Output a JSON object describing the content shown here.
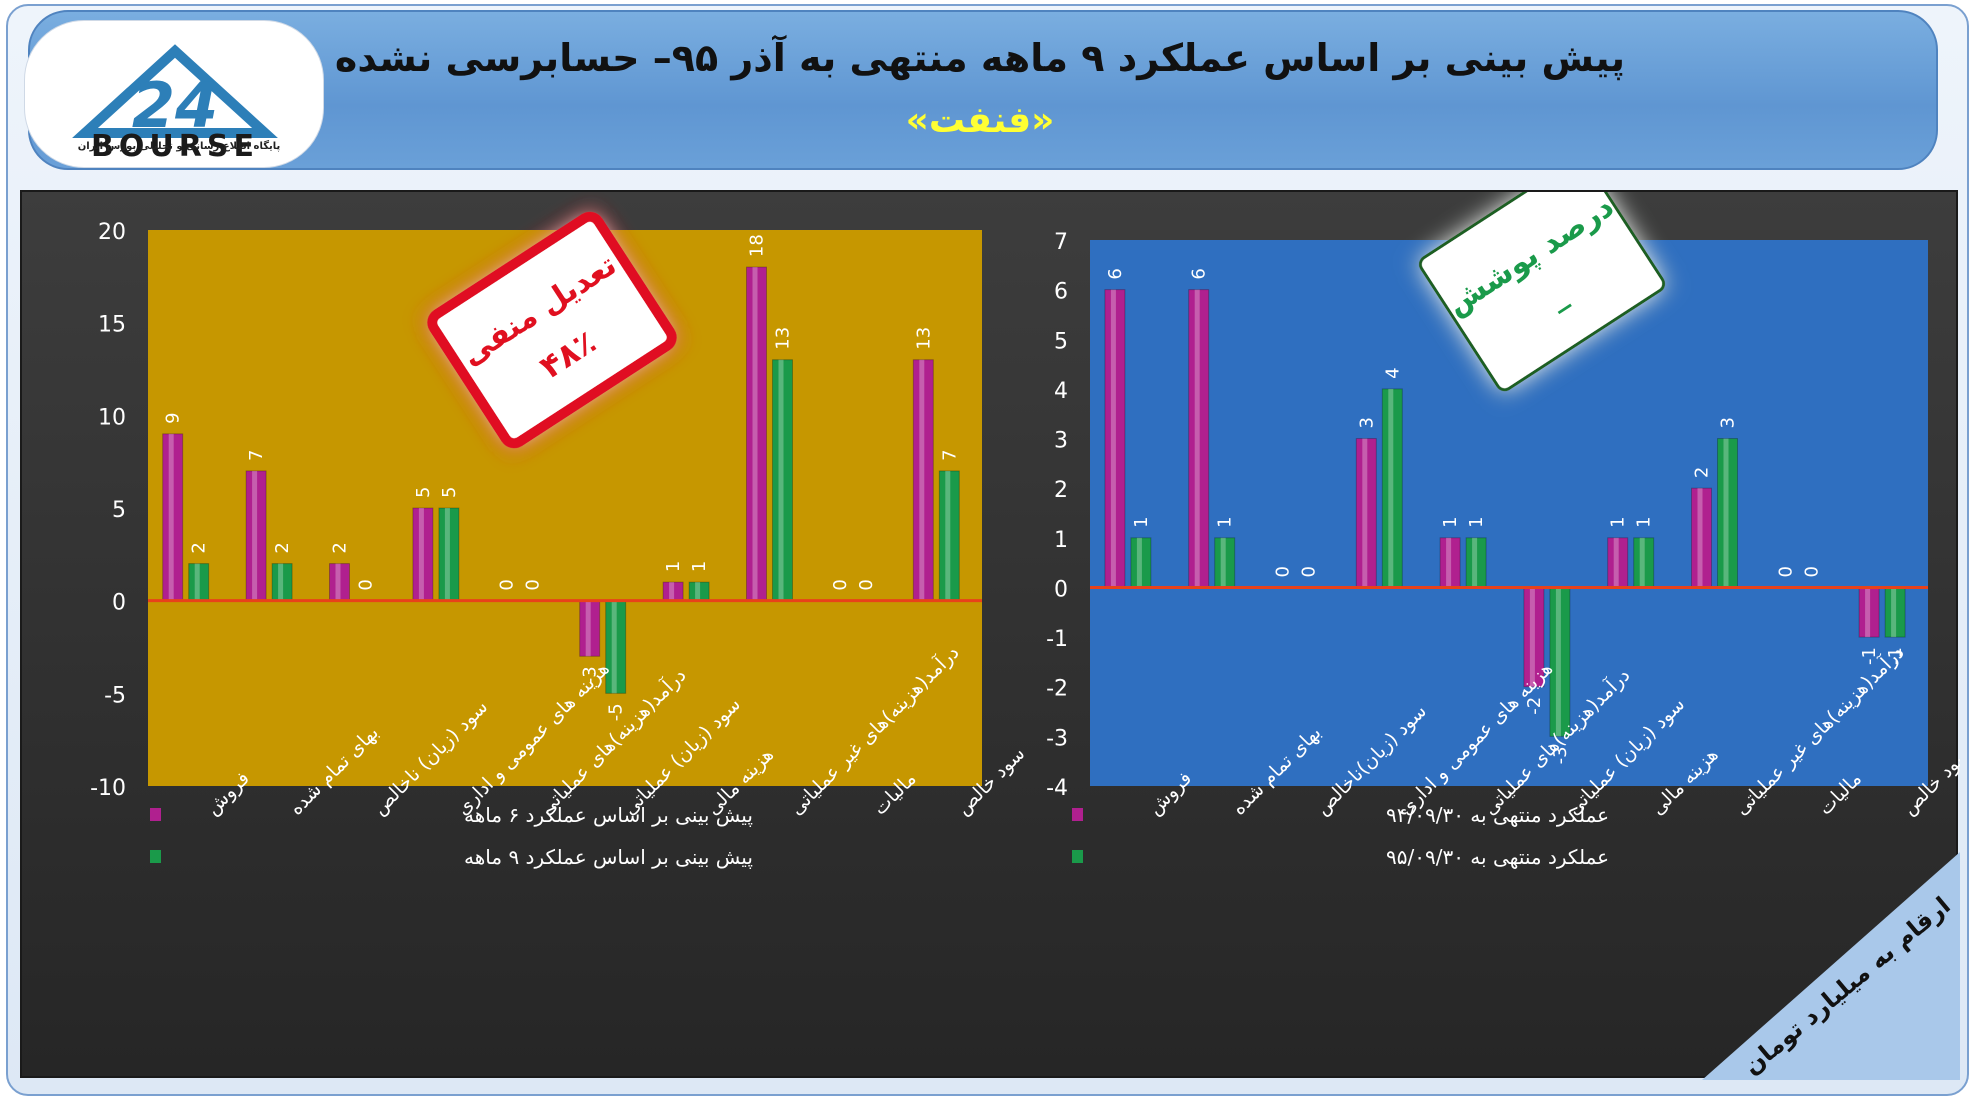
{
  "header": {
    "title": "پیش بینی بر اساس عملکرد ۹ ماهه منتهی به آذر ۹۵– حسابرسی نشده",
    "subtitle": "«فنفت»"
  },
  "logo": {
    "digits": "24",
    "brand": "BOURSE",
    "caption": "پایگاه اطلاع رسانی و تحلیلی بورس ایران"
  },
  "badges": {
    "left": {
      "line1": "تعدیل منفی",
      "line2": "۴۸٪"
    },
    "right": {
      "line1": "درصد پوشش",
      "line2": "_"
    }
  },
  "units_ribbon": "ارقام به میلیارد تومان",
  "colors": {
    "series_a": "#b0208f",
    "series_b": "#1a9a4a",
    "left_plot_bg": "#c69700",
    "right_plot_bg": "#2f6fc0",
    "zero_line": "#e8421a",
    "left_badge": "#e01020",
    "right_badge": "#1a9a4a"
  },
  "chart_data": [
    {
      "type": "bar",
      "categories": [
        "فروش",
        "بهای تمام شده",
        "سود (زیان) ناخالص",
        "هزینه های عمومی و اداری",
        "درآمد(هزینه)های عملیاتی",
        "سود (زیان) عملیاتی",
        "هزینه مالی",
        "درآمد(هزینه)های غیر عملیاتی",
        "مالیات",
        "سود خالص"
      ],
      "series": [
        {
          "name": "پیش بینی بر اساس عملکرد ۶ ماهه",
          "values": [
            9,
            7,
            2,
            5,
            0,
            -3,
            1,
            18,
            0,
            13
          ]
        },
        {
          "name": "پیش بینی بر اساس عملکرد ۹ ماهه",
          "values": [
            2,
            2,
            0,
            5,
            0,
            -5,
            1,
            13,
            0,
            7
          ]
        }
      ],
      "ylim": [
        -10,
        20
      ],
      "yticks": [
        20,
        15,
        10,
        5,
        0,
        -5,
        -10
      ],
      "legend": "bottom-left"
    },
    {
      "type": "bar",
      "categories": [
        "فروش",
        "بهای تمام شده",
        "سود (زیان)ناخالص",
        "هزینه های عمومی و اداری",
        "درآمد(هزینه)های عملیاتی",
        "سود (زیان) عملیاتی",
        "هزینه مالی",
        "درآمد(هزینه)های غیر عملیاتی",
        "مالیات",
        "سود خالص"
      ],
      "series": [
        {
          "name": "عملکرد منتهی به ۹۴/۰۹/۳۰",
          "values": [
            6,
            6,
            0,
            3,
            1,
            -2,
            1,
            2,
            0,
            -1
          ]
        },
        {
          "name": "عملکرد منتهی به ۹۵/۰۹/۳۰",
          "values": [
            1,
            1,
            0,
            4,
            1,
            -3,
            1,
            3,
            0,
            -1
          ]
        }
      ],
      "ylim": [
        -4,
        7
      ],
      "yticks": [
        7,
        6,
        5,
        4,
        3,
        2,
        1,
        0,
        -1,
        -2,
        -3,
        -4
      ],
      "legend": "bottom-left"
    }
  ]
}
